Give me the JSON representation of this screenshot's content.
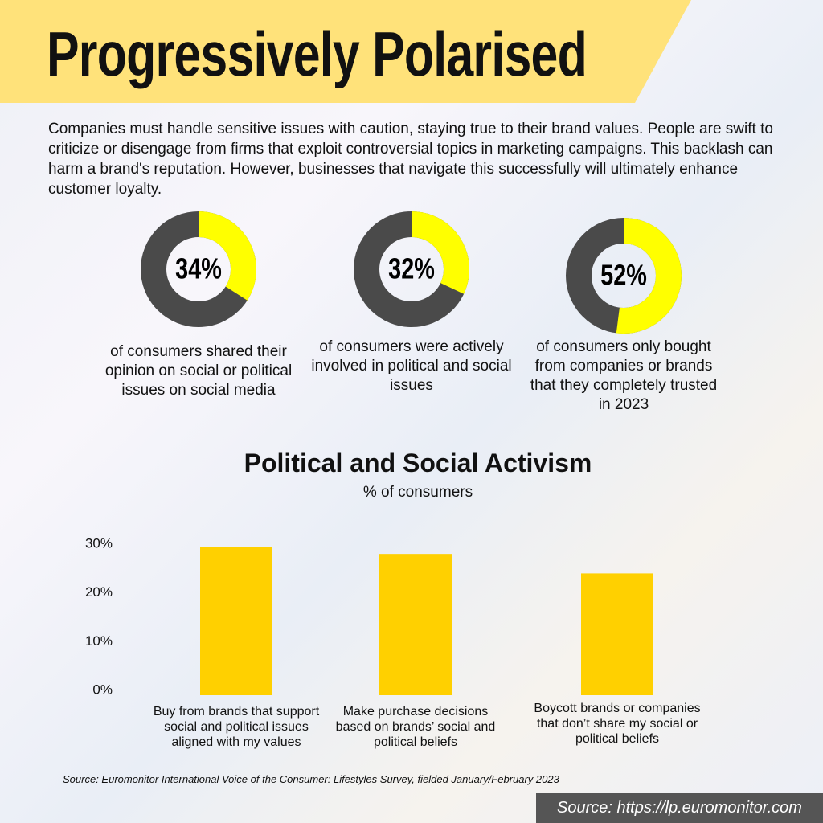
{
  "title": "Progressively Polarised",
  "intro": "Companies must handle sensitive issues with caution, staying true to their brand values. People are swift to criticize or disengage from firms that exploit controversial topics in marketing campaigns. This backlash can harm a brand's reputation. However, businesses that navigate this successfully will ultimately enhance customer loyalty.",
  "stats": [
    {
      "value": 34,
      "label": "34%",
      "caption": "of consumers shared their opinion on social or political issues on social media"
    },
    {
      "value": 32,
      "label": "32%",
      "caption": "of consumers were actively involved in political and social issues"
    },
    {
      "value": 52,
      "label": "52%",
      "caption": "of consumers only bought from companies or brands that they completely trusted in 2023"
    }
  ],
  "chart_data": {
    "type": "bar",
    "title": "Political and Social Activism",
    "subtitle": "% of consumers",
    "categories": [
      "Buy from brands that support social and political issues aligned with my values",
      "Make purchase decisions based on brands’ social and political beliefs",
      "Boycott brands or companies that don’t share my social or political beliefs"
    ],
    "values": [
      30.5,
      29,
      25
    ],
    "color": "#ffd000",
    "ylim": [
      0,
      31.5
    ],
    "yticks": [
      {
        "value": 0,
        "label": "0%"
      },
      {
        "value": 10,
        "label": "10%"
      },
      {
        "value": 20,
        "label": "20%"
      },
      {
        "value": 30,
        "label": "30%"
      }
    ],
    "grid": false
  },
  "source": "Source: Euromonitor International Voice of the Consumer: Lifestyles Survey, fielded January/February 2023",
  "footer": "Source: https://lp.euromonitor.com"
}
